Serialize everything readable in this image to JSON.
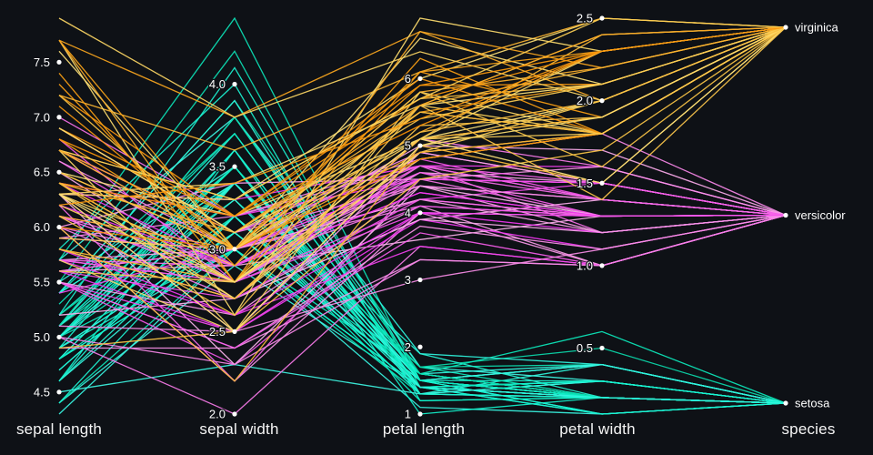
{
  "colors": {
    "background": "#0e1116",
    "text": "#ffffff",
    "tick_dot": "#ffffff"
  },
  "chart_data": {
    "type": "parallel-coordinates",
    "title": "",
    "legend": "none",
    "grid": false,
    "axes": [
      {
        "key": "sepal_length",
        "label": "sepal length",
        "domain": [
          4.3,
          7.9
        ],
        "ticks": [
          {
            "v": 4.5,
            "label": "4.5"
          },
          {
            "v": 5.0,
            "label": "5.0"
          },
          {
            "v": 5.5,
            "label": "5.5"
          },
          {
            "v": 6.0,
            "label": "6.0"
          },
          {
            "v": 6.5,
            "label": "6.5"
          },
          {
            "v": 7.0,
            "label": "7.0"
          },
          {
            "v": 7.5,
            "label": "7.5"
          }
        ]
      },
      {
        "key": "sepal_width",
        "label": "sepal width",
        "domain": [
          2.0,
          4.4
        ],
        "ticks": [
          {
            "v": 2.0,
            "label": "2.0"
          },
          {
            "v": 2.5,
            "label": "2.5"
          },
          {
            "v": 3.0,
            "label": "3.0"
          },
          {
            "v": 3.5,
            "label": "3.5"
          },
          {
            "v": 4.0,
            "label": "4.0"
          }
        ]
      },
      {
        "key": "petal_length",
        "label": "petal length",
        "domain": [
          1.0,
          6.9
        ],
        "ticks": [
          {
            "v": 1,
            "label": "1"
          },
          {
            "v": 2,
            "label": "2"
          },
          {
            "v": 3,
            "label": "3"
          },
          {
            "v": 4,
            "label": "4"
          },
          {
            "v": 5,
            "label": "5"
          },
          {
            "v": 6,
            "label": "6"
          }
        ]
      },
      {
        "key": "petal_width",
        "label": "petal width",
        "domain": [
          0.1,
          2.5
        ],
        "ticks": [
          {
            "v": 0.5,
            "label": "0.5"
          },
          {
            "v": 1.0,
            "label": "1.0"
          },
          {
            "v": 1.5,
            "label": "1.5"
          },
          {
            "v": 2.0,
            "label": "2.0"
          },
          {
            "v": 2.5,
            "label": "2.5"
          }
        ]
      },
      {
        "key": "species",
        "label": "species",
        "categories": [
          "setosa",
          "versicolor",
          "virginica"
        ]
      }
    ],
    "species_colors": {
      "setosa": "#19e2c2",
      "versicolor": "#ee6fd6",
      "virginica": "#f4a71c"
    },
    "rows": [
      [
        5.1,
        3.5,
        1.4,
        0.2,
        "setosa"
      ],
      [
        4.9,
        3.0,
        1.4,
        0.2,
        "setosa"
      ],
      [
        4.7,
        3.2,
        1.3,
        0.2,
        "setosa"
      ],
      [
        4.6,
        3.1,
        1.5,
        0.2,
        "setosa"
      ],
      [
        5.0,
        3.6,
        1.4,
        0.2,
        "setosa"
      ],
      [
        5.4,
        3.9,
        1.7,
        0.4,
        "setosa"
      ],
      [
        4.6,
        3.4,
        1.4,
        0.3,
        "setosa"
      ],
      [
        5.0,
        3.4,
        1.5,
        0.2,
        "setosa"
      ],
      [
        4.4,
        2.9,
        1.4,
        0.2,
        "setosa"
      ],
      [
        4.9,
        3.1,
        1.5,
        0.1,
        "setosa"
      ],
      [
        5.4,
        3.7,
        1.5,
        0.2,
        "setosa"
      ],
      [
        4.8,
        3.4,
        1.6,
        0.2,
        "setosa"
      ],
      [
        4.8,
        3.0,
        1.4,
        0.1,
        "setosa"
      ],
      [
        4.3,
        3.0,
        1.1,
        0.1,
        "setosa"
      ],
      [
        5.8,
        4.0,
        1.2,
        0.2,
        "setosa"
      ],
      [
        5.7,
        4.4,
        1.5,
        0.4,
        "setosa"
      ],
      [
        5.4,
        3.9,
        1.3,
        0.4,
        "setosa"
      ],
      [
        5.1,
        3.5,
        1.4,
        0.3,
        "setosa"
      ],
      [
        5.7,
        3.8,
        1.7,
        0.3,
        "setosa"
      ],
      [
        5.1,
        3.8,
        1.5,
        0.3,
        "setosa"
      ],
      [
        5.4,
        3.4,
        1.7,
        0.2,
        "setosa"
      ],
      [
        5.1,
        3.7,
        1.5,
        0.4,
        "setosa"
      ],
      [
        4.6,
        3.6,
        1.0,
        0.2,
        "setosa"
      ],
      [
        5.1,
        3.3,
        1.7,
        0.5,
        "setosa"
      ],
      [
        4.8,
        3.4,
        1.9,
        0.2,
        "setosa"
      ],
      [
        5.0,
        3.0,
        1.6,
        0.2,
        "setosa"
      ],
      [
        5.0,
        3.4,
        1.6,
        0.4,
        "setosa"
      ],
      [
        5.2,
        3.5,
        1.5,
        0.2,
        "setosa"
      ],
      [
        5.2,
        3.4,
        1.4,
        0.2,
        "setosa"
      ],
      [
        4.7,
        3.2,
        1.6,
        0.2,
        "setosa"
      ],
      [
        4.8,
        3.1,
        1.6,
        0.2,
        "setosa"
      ],
      [
        5.4,
        3.4,
        1.5,
        0.4,
        "setosa"
      ],
      [
        5.2,
        4.1,
        1.5,
        0.1,
        "setosa"
      ],
      [
        5.5,
        4.2,
        1.4,
        0.2,
        "setosa"
      ],
      [
        4.9,
        3.1,
        1.5,
        0.2,
        "setosa"
      ],
      [
        5.0,
        3.2,
        1.2,
        0.2,
        "setosa"
      ],
      [
        5.5,
        3.5,
        1.3,
        0.2,
        "setosa"
      ],
      [
        4.9,
        3.6,
        1.4,
        0.1,
        "setosa"
      ],
      [
        4.4,
        3.0,
        1.3,
        0.2,
        "setosa"
      ],
      [
        5.1,
        3.4,
        1.5,
        0.2,
        "setosa"
      ],
      [
        5.0,
        3.5,
        1.3,
        0.3,
        "setosa"
      ],
      [
        4.5,
        2.3,
        1.3,
        0.3,
        "setosa"
      ],
      [
        4.4,
        3.2,
        1.3,
        0.2,
        "setosa"
      ],
      [
        5.0,
        3.5,
        1.6,
        0.6,
        "setosa"
      ],
      [
        5.1,
        3.8,
        1.9,
        0.4,
        "setosa"
      ],
      [
        4.8,
        3.0,
        1.4,
        0.3,
        "setosa"
      ],
      [
        5.1,
        3.8,
        1.6,
        0.2,
        "setosa"
      ],
      [
        4.6,
        3.2,
        1.4,
        0.2,
        "setosa"
      ],
      [
        5.3,
        3.7,
        1.5,
        0.2,
        "setosa"
      ],
      [
        5.0,
        3.3,
        1.4,
        0.2,
        "setosa"
      ],
      [
        7.0,
        3.2,
        4.7,
        1.4,
        "versicolor"
      ],
      [
        6.4,
        3.2,
        4.5,
        1.5,
        "versicolor"
      ],
      [
        6.9,
        3.1,
        4.9,
        1.5,
        "versicolor"
      ],
      [
        5.5,
        2.3,
        4.0,
        1.3,
        "versicolor"
      ],
      [
        6.5,
        2.8,
        4.6,
        1.5,
        "versicolor"
      ],
      [
        5.7,
        2.8,
        4.5,
        1.3,
        "versicolor"
      ],
      [
        6.3,
        3.3,
        4.7,
        1.6,
        "versicolor"
      ],
      [
        4.9,
        2.4,
        3.3,
        1.0,
        "versicolor"
      ],
      [
        6.6,
        2.9,
        4.6,
        1.3,
        "versicolor"
      ],
      [
        5.2,
        2.7,
        3.9,
        1.4,
        "versicolor"
      ],
      [
        5.0,
        2.0,
        3.5,
        1.0,
        "versicolor"
      ],
      [
        5.9,
        3.0,
        4.2,
        1.5,
        "versicolor"
      ],
      [
        6.0,
        2.2,
        4.0,
        1.0,
        "versicolor"
      ],
      [
        6.1,
        2.9,
        4.7,
        1.4,
        "versicolor"
      ],
      [
        5.6,
        2.9,
        3.6,
        1.3,
        "versicolor"
      ],
      [
        6.7,
        3.1,
        4.4,
        1.4,
        "versicolor"
      ],
      [
        5.6,
        3.0,
        4.5,
        1.5,
        "versicolor"
      ],
      [
        5.8,
        2.7,
        4.1,
        1.0,
        "versicolor"
      ],
      [
        6.2,
        2.2,
        4.5,
        1.5,
        "versicolor"
      ],
      [
        5.6,
        2.5,
        3.9,
        1.1,
        "versicolor"
      ],
      [
        5.9,
        3.2,
        4.8,
        1.8,
        "versicolor"
      ],
      [
        6.1,
        2.8,
        4.0,
        1.3,
        "versicolor"
      ],
      [
        6.3,
        2.5,
        4.9,
        1.5,
        "versicolor"
      ],
      [
        6.1,
        2.8,
        4.7,
        1.2,
        "versicolor"
      ],
      [
        6.4,
        2.9,
        4.3,
        1.3,
        "versicolor"
      ],
      [
        6.6,
        3.0,
        4.4,
        1.4,
        "versicolor"
      ],
      [
        6.8,
        2.8,
        4.8,
        1.4,
        "versicolor"
      ],
      [
        6.7,
        3.0,
        5.0,
        1.7,
        "versicolor"
      ],
      [
        6.0,
        2.9,
        4.5,
        1.5,
        "versicolor"
      ],
      [
        5.7,
        2.6,
        3.5,
        1.0,
        "versicolor"
      ],
      [
        5.5,
        2.4,
        3.8,
        1.1,
        "versicolor"
      ],
      [
        5.5,
        2.4,
        3.7,
        1.0,
        "versicolor"
      ],
      [
        5.8,
        2.7,
        3.9,
        1.2,
        "versicolor"
      ],
      [
        6.0,
        2.7,
        5.1,
        1.6,
        "versicolor"
      ],
      [
        5.4,
        3.0,
        4.5,
        1.5,
        "versicolor"
      ],
      [
        6.0,
        3.4,
        4.5,
        1.6,
        "versicolor"
      ],
      [
        6.7,
        3.1,
        4.7,
        1.5,
        "versicolor"
      ],
      [
        6.3,
        2.3,
        4.4,
        1.3,
        "versicolor"
      ],
      [
        5.6,
        3.0,
        4.1,
        1.3,
        "versicolor"
      ],
      [
        5.5,
        2.5,
        4.0,
        1.3,
        "versicolor"
      ],
      [
        5.5,
        2.6,
        4.4,
        1.2,
        "versicolor"
      ],
      [
        6.1,
        3.0,
        4.6,
        1.4,
        "versicolor"
      ],
      [
        5.8,
        2.6,
        4.0,
        1.2,
        "versicolor"
      ],
      [
        5.0,
        2.3,
        3.3,
        1.0,
        "versicolor"
      ],
      [
        5.6,
        2.7,
        4.2,
        1.3,
        "versicolor"
      ],
      [
        5.7,
        3.0,
        4.2,
        1.2,
        "versicolor"
      ],
      [
        5.7,
        2.9,
        4.2,
        1.3,
        "versicolor"
      ],
      [
        6.2,
        2.9,
        4.3,
        1.3,
        "versicolor"
      ],
      [
        5.1,
        2.5,
        3.0,
        1.1,
        "versicolor"
      ],
      [
        5.7,
        2.8,
        4.1,
        1.3,
        "versicolor"
      ],
      [
        6.3,
        3.3,
        6.0,
        2.5,
        "virginica"
      ],
      [
        5.8,
        2.7,
        5.1,
        1.9,
        "virginica"
      ],
      [
        7.1,
        3.0,
        5.9,
        2.1,
        "virginica"
      ],
      [
        6.3,
        2.9,
        5.6,
        1.8,
        "virginica"
      ],
      [
        6.5,
        3.0,
        5.8,
        2.2,
        "virginica"
      ],
      [
        7.6,
        3.0,
        6.6,
        2.1,
        "virginica"
      ],
      [
        4.9,
        2.5,
        4.5,
        1.7,
        "virginica"
      ],
      [
        7.3,
        2.9,
        6.3,
        1.8,
        "virginica"
      ],
      [
        6.7,
        2.5,
        5.8,
        1.8,
        "virginica"
      ],
      [
        7.2,
        3.6,
        6.1,
        2.5,
        "virginica"
      ],
      [
        6.5,
        3.2,
        5.1,
        2.0,
        "virginica"
      ],
      [
        6.4,
        2.7,
        5.3,
        1.9,
        "virginica"
      ],
      [
        6.8,
        3.0,
        5.5,
        2.1,
        "virginica"
      ],
      [
        5.7,
        2.5,
        5.0,
        2.0,
        "virginica"
      ],
      [
        5.8,
        2.8,
        5.1,
        2.4,
        "virginica"
      ],
      [
        6.4,
        3.2,
        5.3,
        2.3,
        "virginica"
      ],
      [
        6.5,
        3.0,
        5.5,
        1.8,
        "virginica"
      ],
      [
        7.7,
        3.8,
        6.7,
        2.2,
        "virginica"
      ],
      [
        7.7,
        2.6,
        6.9,
        2.3,
        "virginica"
      ],
      [
        6.0,
        2.2,
        5.0,
        1.5,
        "virginica"
      ],
      [
        6.9,
        3.2,
        5.7,
        2.3,
        "virginica"
      ],
      [
        5.6,
        2.8,
        4.9,
        2.0,
        "virginica"
      ],
      [
        7.7,
        2.8,
        6.7,
        2.0,
        "virginica"
      ],
      [
        6.3,
        2.7,
        4.9,
        1.8,
        "virginica"
      ],
      [
        6.7,
        3.3,
        5.7,
        2.1,
        "virginica"
      ],
      [
        7.2,
        3.2,
        6.0,
        1.8,
        "virginica"
      ],
      [
        6.2,
        2.8,
        4.8,
        1.8,
        "virginica"
      ],
      [
        6.1,
        3.0,
        4.9,
        1.8,
        "virginica"
      ],
      [
        6.4,
        2.8,
        5.6,
        2.1,
        "virginica"
      ],
      [
        7.2,
        3.0,
        5.8,
        1.6,
        "virginica"
      ],
      [
        7.4,
        2.8,
        6.1,
        1.9,
        "virginica"
      ],
      [
        7.9,
        3.8,
        6.4,
        2.0,
        "virginica"
      ],
      [
        6.4,
        2.8,
        5.6,
        2.2,
        "virginica"
      ],
      [
        6.3,
        2.8,
        5.1,
        1.5,
        "virginica"
      ],
      [
        6.1,
        2.6,
        5.6,
        1.4,
        "virginica"
      ],
      [
        7.7,
        3.0,
        6.1,
        2.3,
        "virginica"
      ],
      [
        6.3,
        3.4,
        5.6,
        2.4,
        "virginica"
      ],
      [
        6.4,
        3.1,
        5.5,
        1.8,
        "virginica"
      ],
      [
        6.0,
        3.0,
        4.8,
        1.8,
        "virginica"
      ],
      [
        6.9,
        3.1,
        5.4,
        2.1,
        "virginica"
      ],
      [
        6.7,
        3.1,
        5.6,
        2.4,
        "virginica"
      ],
      [
        6.9,
        3.1,
        5.1,
        2.3,
        "virginica"
      ],
      [
        5.8,
        2.7,
        5.1,
        1.9,
        "virginica"
      ],
      [
        6.8,
        3.2,
        5.9,
        2.3,
        "virginica"
      ],
      [
        6.7,
        3.3,
        5.7,
        2.5,
        "virginica"
      ],
      [
        6.7,
        3.0,
        5.2,
        2.3,
        "virginica"
      ],
      [
        6.3,
        2.5,
        5.0,
        1.9,
        "virginica"
      ],
      [
        6.5,
        3.0,
        5.2,
        2.0,
        "virginica"
      ],
      [
        6.2,
        3.4,
        5.4,
        2.3,
        "virginica"
      ],
      [
        5.9,
        3.0,
        5.1,
        1.8,
        "virginica"
      ]
    ]
  }
}
